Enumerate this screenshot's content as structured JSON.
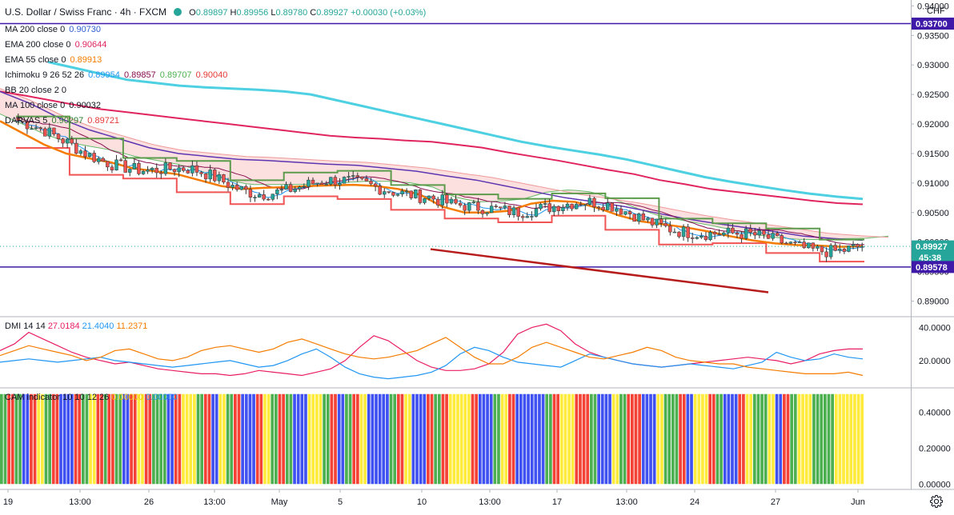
{
  "header": {
    "symbol_title": "U.S. Dollar / Swiss Franc · 4h · FXCM",
    "ohlc": {
      "open_label": "O",
      "open": "0.89897",
      "high_label": "H",
      "high": "0.89956",
      "low_label": "L",
      "low": "0.89780",
      "close_label": "C",
      "close": "0.89927",
      "change": "+0.00030 (+0.03%)"
    }
  },
  "indicators": [
    {
      "label": "MA 200 close 0",
      "values": [
        "0.90730"
      ],
      "colors": [
        "#2f5dd0"
      ]
    },
    {
      "label": "EMA 200 close 0",
      "values": [
        "0.90644"
      ],
      "colors": [
        "#e0245e"
      ]
    },
    {
      "label": "EMA 55 close 0",
      "values": [
        "0.89913"
      ],
      "colors": [
        "#f57c00"
      ]
    },
    {
      "label": "Ichimoku 9 26 52 26",
      "values": [
        "0.89954",
        "0.89857",
        "0.89707",
        "0.90040"
      ],
      "colors": [
        "#2196f3",
        "#880e4f",
        "#4caf50",
        "#e53935"
      ]
    },
    {
      "label": "BB 20 close 2 0",
      "values": [],
      "colors": []
    },
    {
      "label": "MA 100 close 0",
      "values": [
        "0.90032"
      ],
      "colors": [
        "#131722"
      ]
    },
    {
      "label": "DARVAS 5",
      "values": [
        "0.90297",
        "0.89721"
      ],
      "colors": [
        "#2e7d32",
        "#e53935"
      ]
    }
  ],
  "dmi_legend": {
    "label": "DMI 14 14",
    "values": [
      "27.0184",
      "21.4040",
      "11.2371"
    ],
    "colors": [
      "#e91e63",
      "#2196f3",
      "#f57c00"
    ]
  },
  "cam_legend": {
    "label": "CAM indicator 10 10 12 26",
    "values": [
      "0.00000",
      "0.00000"
    ],
    "colors": [
      "#f5c400",
      "#2196f3"
    ]
  },
  "price_axis": {
    "unit": "CHF",
    "ticks": [
      "0.94000",
      "0.93500",
      "0.93000",
      "0.92500",
      "0.92000",
      "0.91500",
      "0.91000",
      "0.90500",
      "0.90000",
      "0.89500",
      "0.89000"
    ],
    "tags": [
      {
        "label": "0.93700",
        "value": 0.937,
        "color": "#3f1aa8"
      },
      {
        "label": "0.89927",
        "value": 0.89927,
        "color": "#26a69a",
        "sub": "45:38"
      },
      {
        "label": "0.89578",
        "value": 0.89578,
        "color": "#3f1aa8"
      }
    ]
  },
  "dmi_axis": {
    "ticks": [
      "40.0000",
      "20.0000"
    ]
  },
  "cam_axis": {
    "ticks": [
      "0.40000",
      "0.20000",
      "0.00000"
    ]
  },
  "time_axis": {
    "labels": [
      "19",
      "13:00",
      "26",
      "13:00",
      "May",
      "5",
      "10",
      "13:00",
      "17",
      "13:00",
      "24",
      "27",
      "Jun"
    ]
  },
  "settings_icon": "gear-icon",
  "chart_data": [
    {
      "type": "candlestick",
      "title": "U.S. Dollar / Swiss Franc · 4h · FXCM",
      "ylim": [
        0.8875,
        0.941
      ],
      "horizontal_lines": [
        0.937,
        0.89578
      ],
      "ema55": [
        0.9205,
        0.9185,
        0.9165,
        0.915,
        0.9142,
        0.9135,
        0.9125,
        0.912,
        0.9115,
        0.9105,
        0.9095,
        0.909,
        0.9092,
        0.9093,
        0.9095,
        0.9096,
        0.9097,
        0.9095,
        0.909,
        0.908,
        0.906,
        0.905,
        0.905,
        0.9053,
        0.9065,
        0.907,
        0.9068,
        0.9058,
        0.9045,
        0.9035,
        0.903,
        0.9025,
        0.9018,
        0.901,
        0.9003,
        0.8998,
        0.8995,
        0.8994,
        0.8992,
        0.8993
      ],
      "ema200": [
        0.9255,
        0.9248,
        0.924,
        0.9232,
        0.9225,
        0.922,
        0.9215,
        0.921,
        0.9205,
        0.92,
        0.9195,
        0.919,
        0.9185,
        0.918,
        0.9177,
        0.9175,
        0.9172,
        0.917,
        0.9165,
        0.916,
        0.9152,
        0.9145,
        0.9138,
        0.913,
        0.9122,
        0.9115,
        0.9105,
        0.9098,
        0.909,
        0.9085,
        0.908,
        0.9075,
        0.907,
        0.9066,
        0.9064
      ],
      "ma200": [
        0.9305,
        0.9295,
        0.9285,
        0.9275,
        0.927,
        0.9265,
        0.9262,
        0.926,
        0.9258,
        0.9255,
        0.925,
        0.924,
        0.923,
        0.922,
        0.921,
        0.92,
        0.919,
        0.918,
        0.917,
        0.9162,
        0.9155,
        0.9148,
        0.914,
        0.913,
        0.912,
        0.911,
        0.9102,
        0.9095,
        0.9088,
        0.9082,
        0.9077,
        0.9073
      ],
      "ma100": [
        0.9255,
        0.9235,
        0.921,
        0.919,
        0.9175,
        0.916,
        0.915,
        0.9145,
        0.914,
        0.9138,
        0.9135,
        0.9132,
        0.913,
        0.9125,
        0.912,
        0.9112,
        0.9105,
        0.9095,
        0.9085,
        0.9075,
        0.9068,
        0.906,
        0.905,
        0.904,
        0.9032,
        0.9025,
        0.9018,
        0.901,
        0.9006,
        0.9003
      ],
      "resistance_line": [
        [
          0.8988,
          0.8985
        ],
        [
          0.8925,
          0.8915
        ]
      ]
    },
    {
      "type": "line",
      "title": "DMI 14 14",
      "ylim": [
        4,
        46
      ],
      "series": [
        {
          "name": "",
          "color": "#e91e63",
          "values": [
            26,
            30,
            37,
            33,
            29,
            25,
            22,
            20,
            18,
            19,
            17,
            15,
            14,
            13,
            12,
            12,
            11,
            12,
            14,
            13,
            12,
            11,
            13,
            15,
            20,
            28,
            35,
            32,
            26,
            20,
            16,
            14,
            14,
            15,
            18,
            25,
            36,
            40,
            42,
            38,
            30,
            25,
            22,
            20,
            18,
            17,
            16,
            17,
            18,
            19,
            20,
            21,
            22,
            21,
            20,
            18,
            20,
            24,
            26,
            27,
            27
          ]
        },
        {
          "name": "",
          "color": "#2196f3",
          "values": [
            19,
            20,
            21,
            20,
            19,
            20,
            21,
            22,
            20,
            19,
            18,
            17,
            16,
            17,
            18,
            19,
            20,
            18,
            16,
            17,
            20,
            24,
            27,
            22,
            16,
            12,
            10,
            9,
            10,
            11,
            13,
            17,
            24,
            28,
            26,
            22,
            19,
            18,
            17,
            16,
            20,
            24,
            22,
            20,
            18,
            17,
            16,
            17,
            18,
            17,
            16,
            15,
            17,
            19,
            25,
            22,
            20,
            21,
            24,
            22,
            21
          ]
        },
        {
          "name": "",
          "color": "#f57c00",
          "values": [
            23,
            26,
            29,
            27,
            25,
            23,
            20,
            22,
            26,
            27,
            24,
            21,
            20,
            22,
            26,
            28,
            29,
            27,
            25,
            27,
            31,
            33,
            30,
            27,
            24,
            22,
            21,
            22,
            24,
            26,
            30,
            34,
            28,
            22,
            18,
            18,
            22,
            28,
            31,
            28,
            25,
            22,
            21,
            23,
            25,
            28,
            26,
            22,
            20,
            19,
            18,
            18,
            16,
            15,
            14,
            13,
            12,
            12,
            12,
            13,
            11
          ]
        }
      ]
    },
    {
      "type": "bar",
      "title": "CAM indicator 10 10 12 26",
      "ylim": [
        -0.03,
        0.53
      ],
      "bar_value": 0.5,
      "colors": {
        "R": "#f44336",
        "G": "#4caf50",
        "B": "#3f51f0",
        "Y": "#ffeb3b"
      },
      "sequence": "GGRRGGBBRRYYGGRRBBBBRRGGYYRRGRRGGBBRRYYRRGGGGBBRRYYYYGGRRBBYYGGRRBBBBRRYYGGRRGGBBBBYYYYGGRRBBGGRRYYBBBBBBGGRRYYBBBBRRGGRRYYYYYYRRBBBBGGYYRRBBBBBBBBGGRRYYYYRRRRGGBBBBYYGGRRRRBBBBYYGGGGRRBBYYYYRRGGBBBBRRYYGGGGYYBBRRGGYYYYGGGGGGYYYYYYYY"
    }
  ]
}
